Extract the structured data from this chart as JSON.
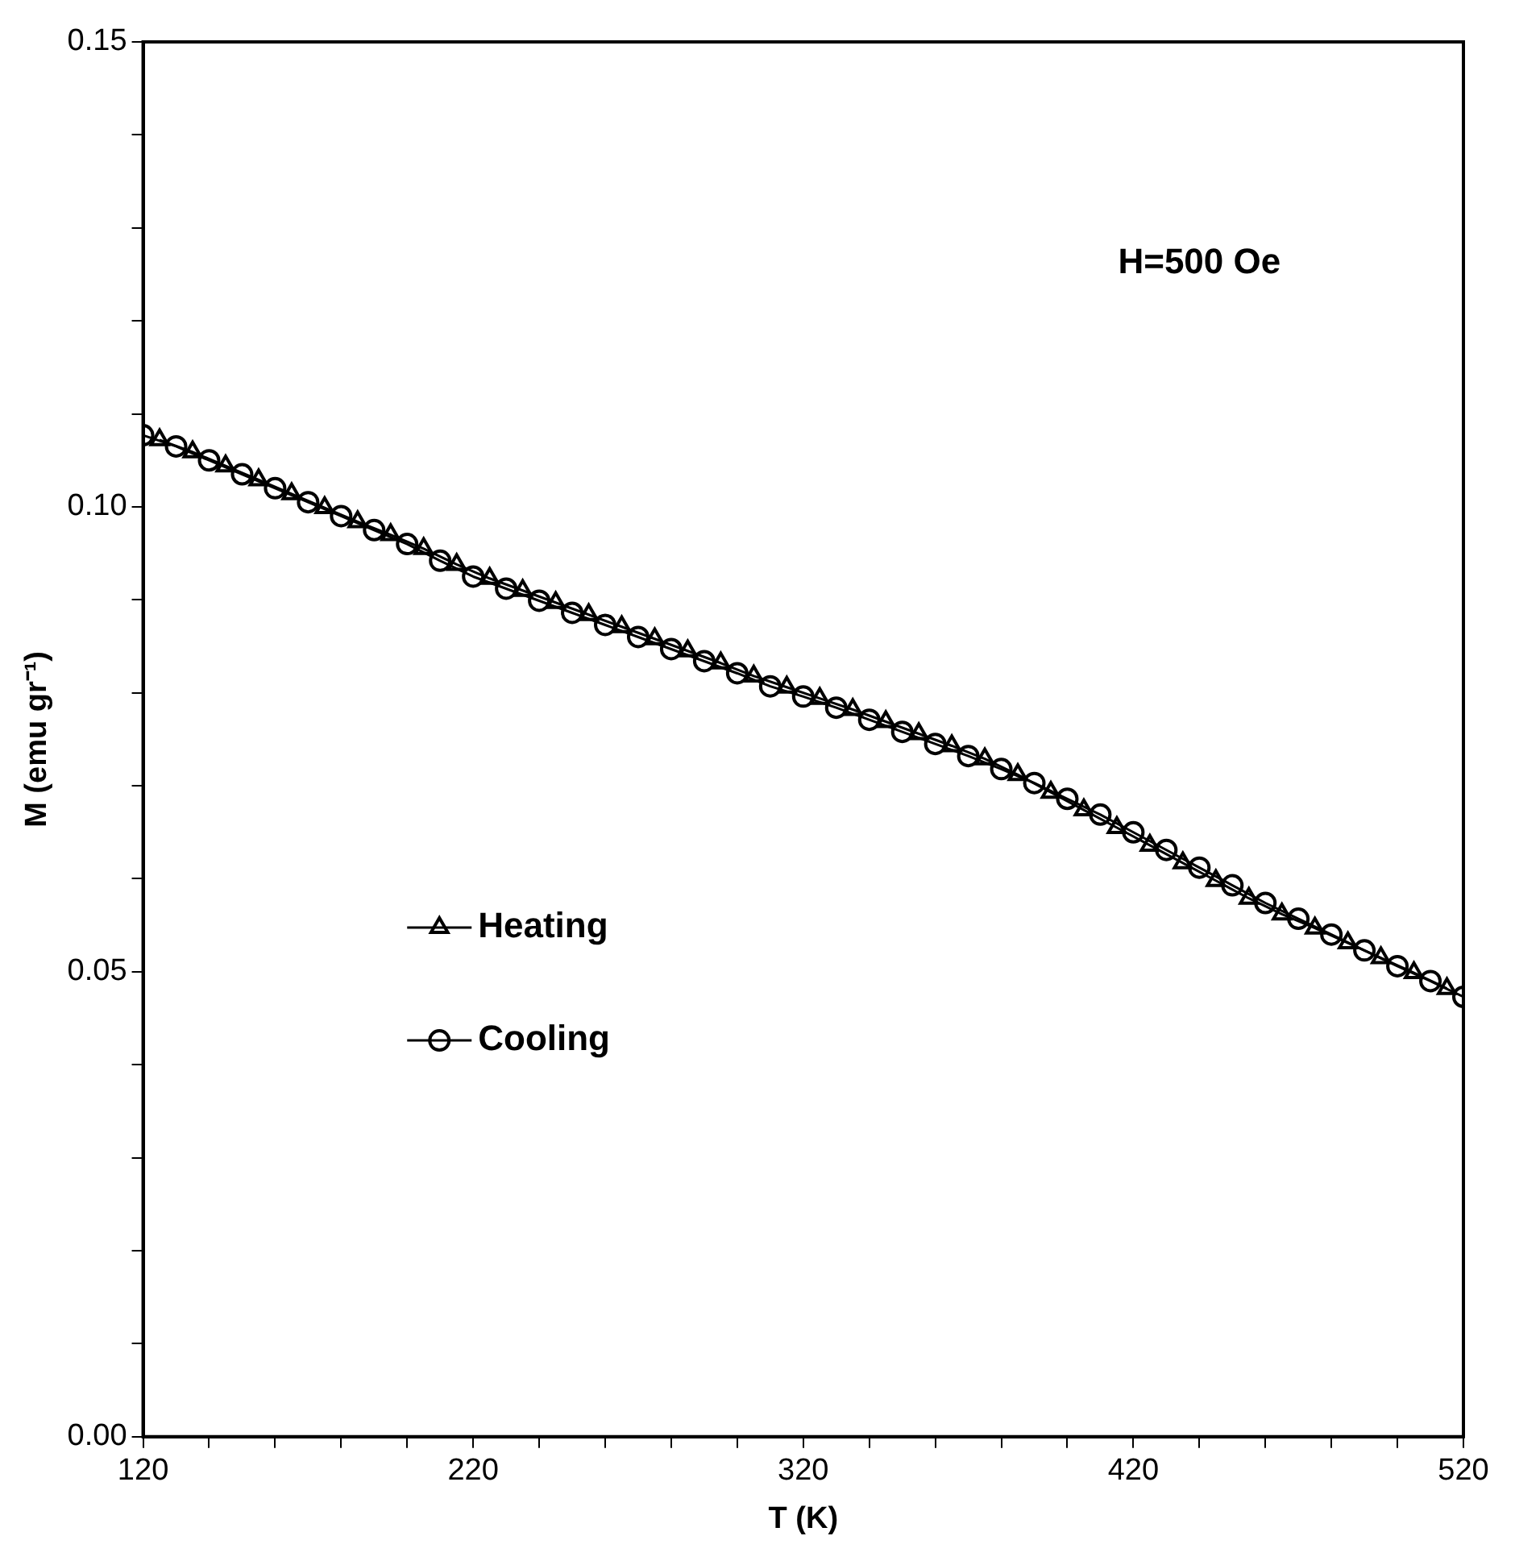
{
  "chart_data": {
    "type": "line",
    "xlabel": "T (K)",
    "ylabel": "M (emu gr⁻¹)",
    "annotations": [
      "H=500 Oe"
    ],
    "legend": "left",
    "grid": false,
    "x": [
      120,
      130,
      140,
      150,
      160,
      170,
      180,
      190,
      200,
      210,
      220,
      230,
      240,
      250,
      260,
      270,
      280,
      290,
      300,
      310,
      320,
      330,
      340,
      350,
      360,
      370,
      380,
      390,
      400,
      410,
      420,
      430,
      440,
      450,
      460,
      470,
      480,
      490,
      500,
      510,
      520
    ],
    "xlim": [
      120,
      520
    ],
    "ylim": [
      0,
      0.15
    ],
    "xticks": [
      120,
      {
        "value": 140,
        "label": null
      },
      {
        "value": 160,
        "label": null
      },
      {
        "value": 180,
        "label": null
      },
      {
        "value": 200,
        "label": null
      },
      220,
      {
        "value": 240,
        "label": null
      },
      {
        "value": 260,
        "label": null
      },
      {
        "value": 280,
        "label": null
      },
      {
        "value": 300,
        "label": null
      },
      320,
      {
        "value": 340,
        "label": null
      },
      {
        "value": 360,
        "label": null
      },
      {
        "value": 380,
        "label": null
      },
      {
        "value": 400,
        "label": null
      },
      420,
      {
        "value": 440,
        "label": null
      },
      {
        "value": 460,
        "label": null
      },
      {
        "value": 480,
        "label": null
      },
      {
        "value": 500,
        "label": null
      },
      520
    ],
    "yticks": [
      {
        "value": 0,
        "label": "0.00"
      },
      {
        "value": 0.01,
        "label": null
      },
      {
        "value": 0.02,
        "label": null
      },
      {
        "value": 0.03,
        "label": null
      },
      {
        "value": 0.04,
        "label": null
      },
      {
        "value": 0.05,
        "label": "0.05"
      },
      {
        "value": 0.06,
        "label": null
      },
      {
        "value": 0.07,
        "label": null
      },
      {
        "value": 0.08,
        "label": null
      },
      {
        "value": 0.09,
        "label": null
      },
      {
        "value": 0.1,
        "label": "0.10"
      },
      {
        "value": 0.11,
        "label": null
      },
      {
        "value": 0.12,
        "label": null
      },
      {
        "value": 0.13,
        "label": null
      },
      {
        "value": 0.14,
        "label": null
      },
      {
        "value": 0.15,
        "label": "0.15"
      }
    ],
    "series": [
      {
        "name": "Heating",
        "color": "#000000",
        "marker": "triangle",
        "x": [
          125,
          135,
          145,
          155,
          165,
          175,
          185,
          195,
          205,
          215,
          225,
          235,
          245,
          255,
          265,
          275,
          285,
          295,
          305,
          315,
          325,
          335,
          345,
          355,
          365,
          375,
          385,
          395,
          405,
          415,
          425,
          435,
          445,
          455,
          465,
          475,
          485,
          495,
          505,
          515
        ],
        "values": [
          0.1072,
          0.1059,
          0.1044,
          0.1029,
          0.1014,
          0.0999,
          0.0984,
          0.097,
          0.0955,
          0.0938,
          0.0923,
          0.091,
          0.0897,
          0.0884,
          0.0871,
          0.0858,
          0.0845,
          0.0832,
          0.0818,
          0.0806,
          0.0794,
          0.0782,
          0.0769,
          0.0756,
          0.0743,
          0.0729,
          0.0712,
          0.0693,
          0.0674,
          0.0655,
          0.0636,
          0.0617,
          0.0598,
          0.0579,
          0.0562,
          0.0547,
          0.0531,
          0.0515,
          0.0499,
          0.0482
        ]
      },
      {
        "name": "Cooling",
        "color": "#000000",
        "marker": "circle",
        "values": [
          0.1077,
          0.1065,
          0.105,
          0.1035,
          0.102,
          0.1005,
          0.099,
          0.0975,
          0.096,
          0.0942,
          0.0925,
          0.0912,
          0.0899,
          0.0886,
          0.0873,
          0.086,
          0.0847,
          0.0834,
          0.0821,
          0.0807,
          0.0796,
          0.0784,
          0.0771,
          0.0758,
          0.0745,
          0.0732,
          0.0718,
          0.0703,
          0.0686,
          0.0669,
          0.065,
          0.0631,
          0.0612,
          0.0593,
          0.0574,
          0.0557,
          0.054,
          0.0523,
          0.0506,
          0.049,
          0.0473
        ]
      }
    ]
  }
}
